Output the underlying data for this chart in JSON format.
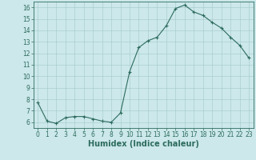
{
  "x": [
    0,
    1,
    2,
    3,
    4,
    5,
    6,
    7,
    8,
    9,
    10,
    11,
    12,
    13,
    14,
    15,
    16,
    17,
    18,
    19,
    20,
    21,
    22,
    23
  ],
  "y": [
    7.7,
    6.1,
    5.9,
    6.4,
    6.5,
    6.5,
    6.3,
    6.1,
    6.0,
    6.8,
    10.4,
    12.5,
    13.1,
    13.4,
    14.4,
    15.9,
    16.2,
    15.6,
    15.3,
    14.7,
    14.2,
    13.4,
    12.7,
    11.6
  ],
  "line_color": "#2d6b5e",
  "marker": "+",
  "bg_color": "#cce8ea",
  "grid_color": "#aacdd0",
  "xlabel": "Humidex (Indice chaleur)",
  "xlim": [
    -0.5,
    23.5
  ],
  "ylim": [
    5.5,
    16.5
  ],
  "yticks": [
    6,
    7,
    8,
    9,
    10,
    11,
    12,
    13,
    14,
    15,
    16
  ],
  "xticks": [
    0,
    1,
    2,
    3,
    4,
    5,
    6,
    7,
    8,
    9,
    10,
    11,
    12,
    13,
    14,
    15,
    16,
    17,
    18,
    19,
    20,
    21,
    22,
    23
  ],
  "tick_label_fontsize": 5.5,
  "xlabel_fontsize": 7,
  "linewidth": 0.8,
  "markersize": 3.0,
  "markeredgewidth": 0.8
}
